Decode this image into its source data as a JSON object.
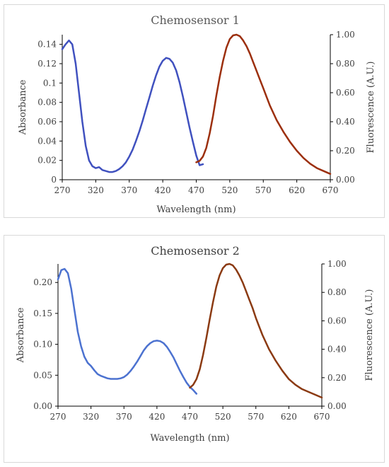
{
  "chart_data": [
    {
      "type": "line",
      "title": "Chemosensor 1",
      "title_color": "#595959",
      "xlabel": "Wavelength (nm)",
      "ylabel_left": "Absorbance",
      "ylabel_right": "Fluorescence (A.U.)",
      "xlim": [
        270,
        670
      ],
      "xticks": [
        "270",
        "320",
        "370",
        "420",
        "470",
        "520",
        "570",
        "620",
        "670"
      ],
      "ylim_left": [
        0,
        0.15
      ],
      "yticks_left": [
        "0",
        "0.02",
        "0.04",
        "0.06",
        "0.08",
        "0.1",
        "0.12",
        "0.14"
      ],
      "ylim_right": [
        0,
        1.0
      ],
      "yticks_right": [
        "0.00",
        "0.20",
        "0.40",
        "0.60",
        "0.80",
        "1.00"
      ],
      "grid": false,
      "legend": "none",
      "series": [
        {
          "axis": "left",
          "color": "#4051bf",
          "x": [
            270,
            275,
            280,
            285,
            290,
            295,
            300,
            305,
            310,
            315,
            320,
            325,
            330,
            335,
            340,
            345,
            350,
            355,
            360,
            365,
            370,
            375,
            380,
            385,
            390,
            395,
            400,
            405,
            410,
            415,
            420,
            425,
            430,
            435,
            440,
            445,
            450,
            455,
            460,
            465,
            470,
            475,
            480
          ],
          "y": [
            0.135,
            0.14,
            0.144,
            0.14,
            0.12,
            0.09,
            0.06,
            0.035,
            0.02,
            0.014,
            0.012,
            0.013,
            0.01,
            0.009,
            0.008,
            0.008,
            0.009,
            0.011,
            0.014,
            0.018,
            0.024,
            0.031,
            0.04,
            0.05,
            0.061,
            0.073,
            0.085,
            0.097,
            0.108,
            0.117,
            0.123,
            0.126,
            0.125,
            0.121,
            0.113,
            0.101,
            0.086,
            0.07,
            0.054,
            0.039,
            0.025,
            0.015,
            0.016
          ]
        },
        {
          "axis": "right",
          "color": "#9c2f0d",
          "x": [
            470,
            475,
            480,
            485,
            490,
            495,
            500,
            505,
            510,
            515,
            520,
            525,
            530,
            535,
            540,
            545,
            550,
            555,
            560,
            565,
            570,
            575,
            580,
            590,
            600,
            610,
            620,
            630,
            640,
            650,
            660,
            670
          ],
          "y": [
            0.12,
            0.13,
            0.16,
            0.22,
            0.32,
            0.44,
            0.58,
            0.71,
            0.82,
            0.91,
            0.97,
            0.995,
            1.0,
            0.99,
            0.96,
            0.92,
            0.87,
            0.81,
            0.75,
            0.69,
            0.63,
            0.57,
            0.51,
            0.41,
            0.33,
            0.26,
            0.2,
            0.15,
            0.11,
            0.08,
            0.06,
            0.04
          ]
        }
      ]
    },
    {
      "type": "line",
      "title": "Chemosensor 2",
      "title_color": "#404040",
      "xlabel": "Wavelength (nm)",
      "ylabel_left": "Absorbance",
      "ylabel_right": "Fluorescence (A.U.)",
      "xlim": [
        270,
        670
      ],
      "xticks": [
        "270",
        "320",
        "370",
        "420",
        "470",
        "520",
        "570",
        "620",
        "670"
      ],
      "ylim_left": [
        0,
        0.23
      ],
      "yticks_left": [
        "0.00",
        "0.05",
        "0.10",
        "0.15",
        "0.20"
      ],
      "ylim_right": [
        0,
        1.0
      ],
      "yticks_right": [
        "0.00",
        "0.20",
        "0.40",
        "0.60",
        "0.80",
        "1.00"
      ],
      "grid": false,
      "legend": "none",
      "series": [
        {
          "axis": "left",
          "color": "#4c72d0",
          "x": [
            270,
            275,
            280,
            285,
            290,
            295,
            300,
            305,
            310,
            315,
            320,
            325,
            330,
            335,
            340,
            345,
            350,
            355,
            360,
            365,
            370,
            375,
            380,
            385,
            390,
            395,
            400,
            405,
            410,
            415,
            420,
            425,
            430,
            435,
            440,
            445,
            450,
            455,
            460,
            465,
            470,
            475,
            480
          ],
          "y": [
            0.205,
            0.22,
            0.222,
            0.215,
            0.19,
            0.155,
            0.12,
            0.097,
            0.08,
            0.07,
            0.065,
            0.058,
            0.052,
            0.049,
            0.047,
            0.045,
            0.044,
            0.044,
            0.044,
            0.045,
            0.047,
            0.051,
            0.057,
            0.064,
            0.072,
            0.081,
            0.09,
            0.097,
            0.102,
            0.105,
            0.106,
            0.105,
            0.102,
            0.096,
            0.088,
            0.079,
            0.068,
            0.057,
            0.047,
            0.038,
            0.031,
            0.026,
            0.02
          ]
        },
        {
          "axis": "right",
          "color": "#8b3a12",
          "x": [
            470,
            475,
            480,
            485,
            490,
            495,
            500,
            505,
            510,
            515,
            520,
            525,
            530,
            535,
            540,
            545,
            550,
            555,
            560,
            565,
            570,
            575,
            580,
            590,
            600,
            610,
            620,
            630,
            640,
            650,
            660,
            670
          ],
          "y": [
            0.13,
            0.15,
            0.19,
            0.26,
            0.36,
            0.48,
            0.61,
            0.73,
            0.84,
            0.92,
            0.97,
            0.995,
            1.0,
            0.99,
            0.96,
            0.92,
            0.87,
            0.81,
            0.75,
            0.69,
            0.62,
            0.56,
            0.5,
            0.4,
            0.32,
            0.25,
            0.19,
            0.15,
            0.12,
            0.1,
            0.08,
            0.06
          ]
        }
      ]
    }
  ]
}
